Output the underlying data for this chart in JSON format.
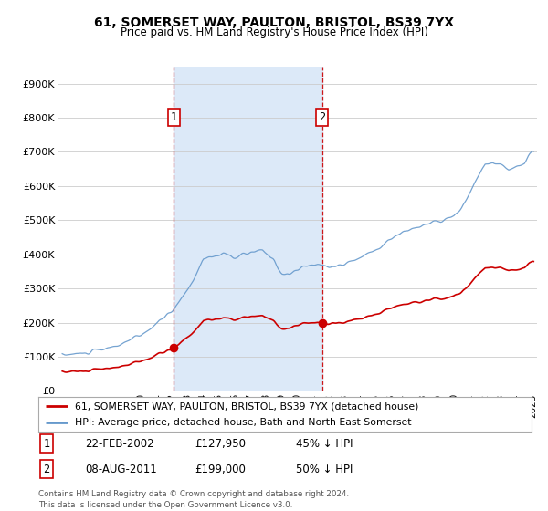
{
  "title": "61, SOMERSET WAY, PAULTON, BRISTOL, BS39 7YX",
  "subtitle": "Price paid vs. HM Land Registry's House Price Index (HPI)",
  "ylabel_ticks": [
    "£0",
    "£100K",
    "£200K",
    "£300K",
    "£400K",
    "£500K",
    "£600K",
    "£700K",
    "£800K",
    "£900K"
  ],
  "ytick_values": [
    0,
    100000,
    200000,
    300000,
    400000,
    500000,
    600000,
    700000,
    800000,
    900000
  ],
  "ylim": [
    0,
    950000
  ],
  "xlim_start": 1994.7,
  "xlim_end": 2025.3,
  "bg_color": "#ffffff",
  "shaded_color": "#dce9f8",
  "line1_color": "#cc0000",
  "line2_color": "#6699cc",
  "vline_color": "#cc0000",
  "transaction1_x": 2002.12,
  "transaction1_y": 127950,
  "transaction2_x": 2011.58,
  "transaction2_y": 199000,
  "legend_line1": "61, SOMERSET WAY, PAULTON, BRISTOL, BS39 7YX (detached house)",
  "legend_line2": "HPI: Average price, detached house, Bath and North East Somerset",
  "annotation1_date": "22-FEB-2002",
  "annotation1_price": "£127,950",
  "annotation1_hpi": "45% ↓ HPI",
  "annotation2_date": "08-AUG-2011",
  "annotation2_price": "£199,000",
  "annotation2_hpi": "50% ↓ HPI",
  "footer": "Contains HM Land Registry data © Crown copyright and database right 2024.\nThis data is licensed under the Open Government Licence v3.0."
}
